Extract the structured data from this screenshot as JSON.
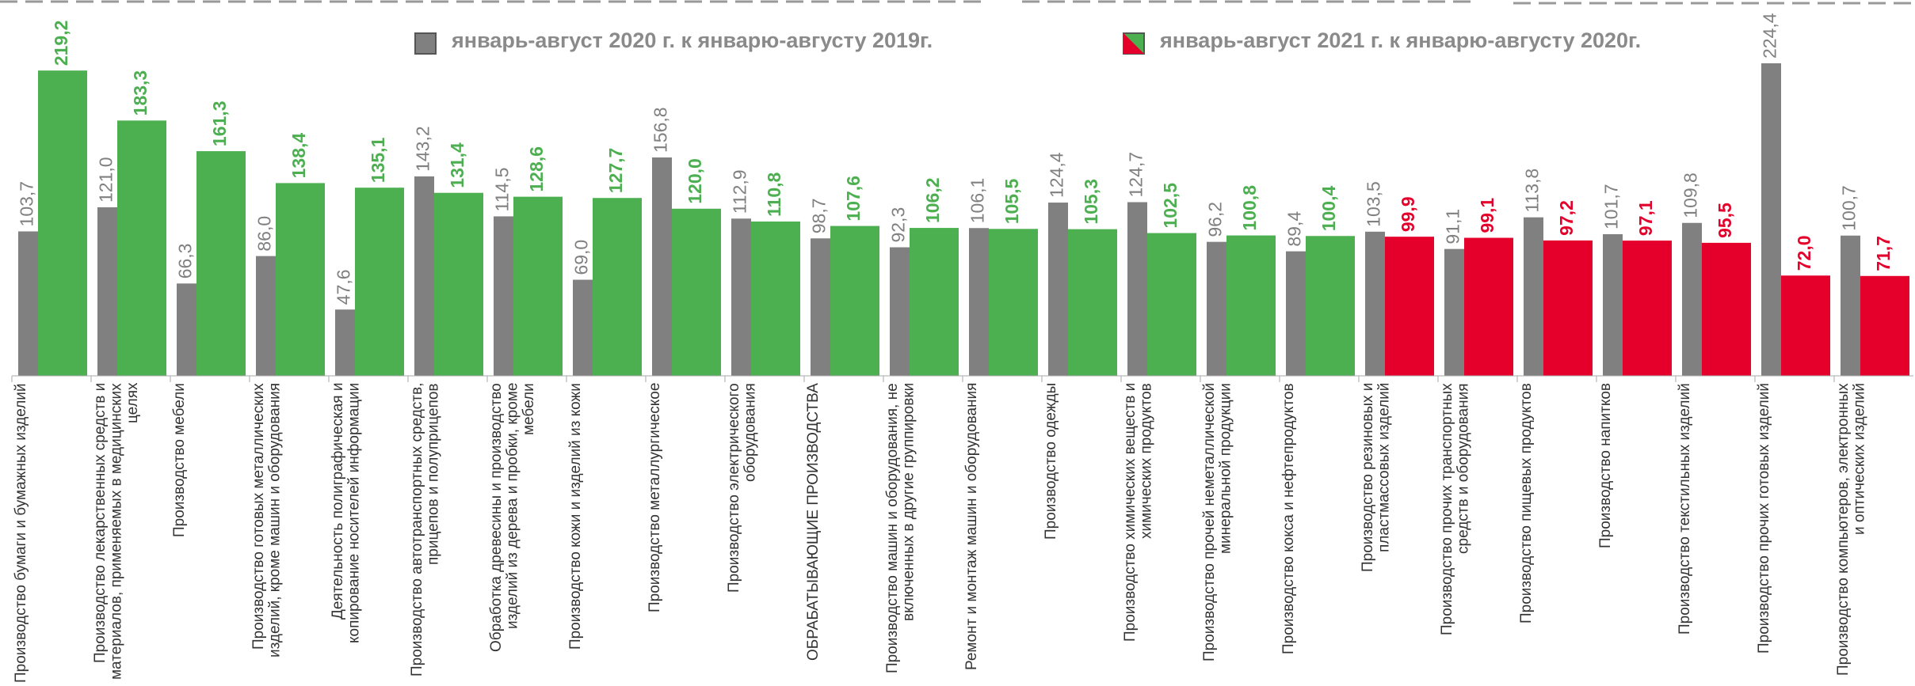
{
  "chart_data": {
    "type": "bar",
    "categories": [
      "Производство бумаги и бумажных изделий",
      "Производство лекарственных средств и материалов, применяемых в медицинских целях",
      "Производство мебели",
      "Производство готовых металлических изделий, кроме машин и оборудования",
      "Деятельность полиграфическая и копирование носителей информации",
      "Производство автотранспортных средств, прицепов и полуприцепов",
      "Обработка древесины и производство изделий из дерева и пробки, кроме мебели",
      "Производство кожи и изделий из кожи",
      "Производство металлургическое",
      "Производство электрического оборудования",
      "ОБРАБАТЫВАЮЩИЕ ПРОИЗВОДСТВА",
      "Производство машин и оборудования, не включенных в другие группировки",
      "Ремонт и монтаж машин и оборудования",
      "Производство одежды",
      "Производство химических веществ и химических продуктов",
      "Производство прочей неметаллической минеральной продукции",
      "Производство кокса и нефтепродуктов",
      "Производство резиновых и пластмассовых изделий",
      "Производство прочих транспортных средств и оборудования",
      "Производство пищевых продуктов",
      "Производство напитков",
      "Производство текстильных изделий",
      "Производство прочих готовых изделий",
      "Производство компьютеров, электронных и оптических изделий"
    ],
    "series": [
      {
        "name": "январь-август 2020 г. к январю-августу 2019г.",
        "color": "#808080",
        "values": [
          103.7,
          121.0,
          66.3,
          86.0,
          47.6,
          143.2,
          114.5,
          69.0,
          156.8,
          112.9,
          98.7,
          92.3,
          106.1,
          124.4,
          124.7,
          96.2,
          89.4,
          103.5,
          91.1,
          113.8,
          101.7,
          109.8,
          224.4,
          100.7
        ],
        "value_labels": [
          "103,7",
          "121,0",
          "66,3",
          "86,0",
          "47,6",
          "143,2",
          "114,5",
          "69,0",
          "156,8",
          "112,9",
          "98,7",
          "92,3",
          "106,1",
          "124,4",
          "124,7",
          "96,2",
          "89,4",
          "103,5",
          "91,1",
          "113,8",
          "101,7",
          "109,8",
          "224,4",
          "100,7"
        ]
      },
      {
        "name": "январь-август 2021 г. к январю-августу 2020г.",
        "color": "#4caf50",
        "colors": [
          "#4caf50",
          "#4caf50",
          "#4caf50",
          "#4caf50",
          "#4caf50",
          "#4caf50",
          "#4caf50",
          "#4caf50",
          "#4caf50",
          "#4caf50",
          "#4caf50",
          "#4caf50",
          "#4caf50",
          "#4caf50",
          "#4caf50",
          "#4caf50",
          "#4caf50",
          "#e4002b",
          "#e4002b",
          "#e4002b",
          "#e4002b",
          "#e4002b",
          "#e4002b",
          "#e4002b"
        ],
        "values": [
          219.2,
          183.3,
          161.3,
          138.4,
          135.1,
          131.4,
          128.6,
          127.7,
          120.0,
          110.8,
          107.6,
          106.2,
          105.5,
          105.3,
          102.5,
          100.8,
          100.4,
          99.9,
          99.1,
          97.2,
          97.1,
          95.5,
          72.0,
          71.7
        ],
        "value_labels": [
          "219,2",
          "183,3",
          "161,3",
          "138,4",
          "135,1",
          "131,4",
          "128,6",
          "127,7",
          "120,0",
          "110,8",
          "107,6",
          "106,2",
          "105,5",
          "105,3",
          "102,5",
          "100,8",
          "100,4",
          "99,9",
          "99,1",
          "97,2",
          "97,1",
          "95,5",
          "72,0",
          "71,7"
        ]
      }
    ]
  }
}
